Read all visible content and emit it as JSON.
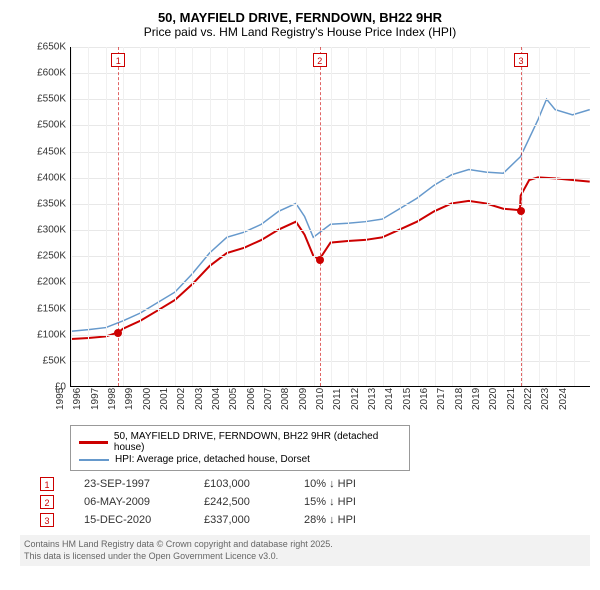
{
  "title": "50, MAYFIELD DRIVE, FERNDOWN, BH22 9HR",
  "subtitle": "Price paid vs. HM Land Registry's House Price Index (HPI)",
  "chart": {
    "type": "line",
    "ylim": [
      0,
      650000
    ],
    "ytick_step": 50000,
    "yticks": [
      "£0",
      "£50K",
      "£100K",
      "£150K",
      "£200K",
      "£250K",
      "£300K",
      "£350K",
      "£400K",
      "£450K",
      "£500K",
      "£550K",
      "£600K",
      "£650K"
    ],
    "xlim": [
      1995,
      2025
    ],
    "xticks": [
      1995,
      1996,
      1997,
      1998,
      1999,
      2000,
      2001,
      2002,
      2003,
      2004,
      2005,
      2006,
      2007,
      2008,
      2009,
      2010,
      2011,
      2012,
      2013,
      2014,
      2015,
      2016,
      2017,
      2018,
      2019,
      2020,
      2021,
      2022,
      2023,
      2024
    ],
    "series": [
      {
        "name": "property",
        "color": "#cc0000",
        "width": 2,
        "points": [
          [
            1995,
            90000
          ],
          [
            1996,
            92000
          ],
          [
            1997,
            95000
          ],
          [
            1997.73,
            103000
          ],
          [
            1998,
            110000
          ],
          [
            1999,
            125000
          ],
          [
            2000,
            145000
          ],
          [
            2001,
            165000
          ],
          [
            2002,
            195000
          ],
          [
            2003,
            230000
          ],
          [
            2004,
            255000
          ],
          [
            2005,
            265000
          ],
          [
            2006,
            280000
          ],
          [
            2007,
            300000
          ],
          [
            2008,
            315000
          ],
          [
            2008.5,
            290000
          ],
          [
            2009,
            250000
          ],
          [
            2009.35,
            242500
          ],
          [
            2010,
            275000
          ],
          [
            2011,
            278000
          ],
          [
            2012,
            280000
          ],
          [
            2013,
            285000
          ],
          [
            2014,
            300000
          ],
          [
            2015,
            315000
          ],
          [
            2016,
            335000
          ],
          [
            2017,
            350000
          ],
          [
            2018,
            355000
          ],
          [
            2019,
            350000
          ],
          [
            2020,
            340000
          ],
          [
            2020.96,
            337000
          ],
          [
            2021,
            365000
          ],
          [
            2021.5,
            395000
          ],
          [
            2022,
            400000
          ],
          [
            2023,
            398000
          ],
          [
            2024,
            395000
          ],
          [
            2025,
            392000
          ]
        ]
      },
      {
        "name": "hpi",
        "color": "#6699cc",
        "width": 1.5,
        "points": [
          [
            1995,
            105000
          ],
          [
            1996,
            108000
          ],
          [
            1997,
            112000
          ],
          [
            1998,
            125000
          ],
          [
            1999,
            140000
          ],
          [
            2000,
            160000
          ],
          [
            2001,
            180000
          ],
          [
            2002,
            215000
          ],
          [
            2003,
            255000
          ],
          [
            2004,
            285000
          ],
          [
            2005,
            295000
          ],
          [
            2006,
            310000
          ],
          [
            2007,
            335000
          ],
          [
            2008,
            350000
          ],
          [
            2008.5,
            325000
          ],
          [
            2009,
            285000
          ],
          [
            2010,
            310000
          ],
          [
            2011,
            312000
          ],
          [
            2012,
            315000
          ],
          [
            2013,
            320000
          ],
          [
            2014,
            340000
          ],
          [
            2015,
            360000
          ],
          [
            2016,
            385000
          ],
          [
            2017,
            405000
          ],
          [
            2018,
            415000
          ],
          [
            2019,
            410000
          ],
          [
            2020,
            408000
          ],
          [
            2021,
            440000
          ],
          [
            2022,
            510000
          ],
          [
            2022.5,
            550000
          ],
          [
            2023,
            530000
          ],
          [
            2024,
            520000
          ],
          [
            2025,
            530000
          ]
        ]
      }
    ],
    "sale_markers": [
      {
        "n": "1",
        "year": 1997.73,
        "price": 103000
      },
      {
        "n": "2",
        "year": 2009.35,
        "price": 242500
      },
      {
        "n": "3",
        "year": 2020.96,
        "price": 337000
      }
    ],
    "dot_color": "#cc0000",
    "background_color": "#ffffff",
    "grid_color": "#e8e8e8"
  },
  "legend": {
    "property": {
      "color": "#cc0000",
      "label": "50, MAYFIELD DRIVE, FERNDOWN, BH22 9HR (detached house)"
    },
    "hpi": {
      "color": "#6699cc",
      "label": "HPI: Average price, detached house, Dorset"
    }
  },
  "sales": [
    {
      "n": "1",
      "date": "23-SEP-1997",
      "price": "£103,000",
      "diff": "10% ↓ HPI"
    },
    {
      "n": "2",
      "date": "06-MAY-2009",
      "price": "£242,500",
      "diff": "15% ↓ HPI"
    },
    {
      "n": "3",
      "date": "15-DEC-2020",
      "price": "£337,000",
      "diff": "28% ↓ HPI"
    }
  ],
  "footer": {
    "line1": "Contains HM Land Registry data © Crown copyright and database right 2025.",
    "line2": "This data is licensed under the Open Government Licence v3.0."
  }
}
